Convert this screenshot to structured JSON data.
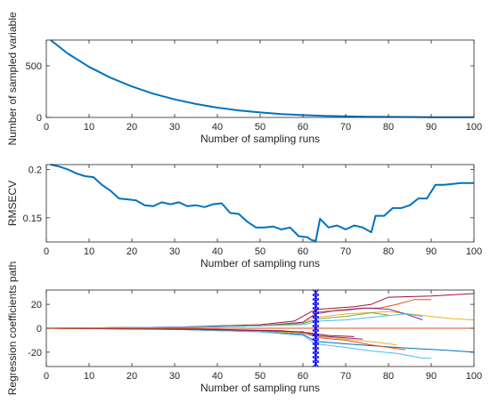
{
  "chart_data": [
    {
      "type": "line",
      "xlabel": "Number of sampling runs",
      "ylabel": "Number of sampled variable",
      "xlim": [
        0,
        100
      ],
      "ylim": [
        0,
        750
      ],
      "xticks": [
        0,
        10,
        20,
        30,
        40,
        50,
        60,
        70,
        80,
        90,
        100
      ],
      "yticks": [
        0,
        500
      ],
      "grid": false,
      "series": [
        {
          "color": "#0072BD",
          "x": [
            1,
            5,
            10,
            15,
            20,
            25,
            30,
            35,
            40,
            45,
            50,
            55,
            60,
            65,
            70,
            75,
            80,
            85,
            90,
            95,
            100
          ],
          "y": [
            750,
            620,
            490,
            385,
            300,
            230,
            175,
            130,
            95,
            68,
            48,
            33,
            22,
            15,
            10,
            7,
            5,
            4,
            3,
            2,
            2
          ]
        }
      ]
    },
    {
      "type": "line",
      "xlabel": "Number of sampling runs",
      "ylabel": "RMSECV",
      "xlim": [
        0,
        100
      ],
      "ylim": [
        0.125,
        0.205
      ],
      "xticks": [
        0,
        10,
        20,
        30,
        40,
        50,
        60,
        70,
        80,
        90,
        100
      ],
      "yticks": [
        0.15,
        0.2
      ],
      "grid": false,
      "series": [
        {
          "color": "#0072BD",
          "x": [
            1,
            3,
            5,
            7,
            9,
            11,
            13,
            15,
            17,
            19,
            21,
            23,
            25,
            27,
            29,
            31,
            33,
            35,
            37,
            39,
            41,
            43,
            45,
            47,
            49,
            51,
            53,
            55,
            57,
            59,
            61,
            62,
            63,
            64,
            66,
            68,
            70,
            72,
            74,
            76,
            77,
            79,
            81,
            83,
            85,
            87,
            89,
            91,
            93,
            95,
            97,
            99,
            100
          ],
          "y": [
            0.205,
            0.203,
            0.2,
            0.196,
            0.193,
            0.192,
            0.184,
            0.178,
            0.17,
            0.169,
            0.168,
            0.163,
            0.162,
            0.166,
            0.164,
            0.166,
            0.162,
            0.163,
            0.161,
            0.164,
            0.165,
            0.155,
            0.154,
            0.146,
            0.14,
            0.14,
            0.141,
            0.138,
            0.14,
            0.131,
            0.13,
            0.127,
            0.126,
            0.149,
            0.14,
            0.142,
            0.138,
            0.142,
            0.14,
            0.135,
            0.152,
            0.152,
            0.16,
            0.16,
            0.163,
            0.17,
            0.17,
            0.184,
            0.184,
            0.185,
            0.186,
            0.186,
            0.186
          ]
        }
      ]
    },
    {
      "type": "line",
      "xlabel": "Number of sampling runs",
      "ylabel": "Regression coefficients path",
      "xlim": [
        0,
        100
      ],
      "ylim": [
        -32,
        32
      ],
      "xticks": [
        0,
        10,
        20,
        30,
        40,
        50,
        60,
        70,
        80,
        90,
        100
      ],
      "yticks": [
        -20,
        0,
        20
      ],
      "grid": false,
      "marker_line": {
        "x": 63,
        "color": "#0000ff"
      },
      "series": [
        {
          "color": "#A2142F",
          "x": [
            0,
            30,
            50,
            58,
            60,
            62,
            64,
            68,
            72,
            76,
            80,
            90,
            95,
            100
          ],
          "y": [
            0,
            1,
            3,
            6,
            10,
            14,
            16,
            17,
            18,
            20,
            26,
            27,
            28,
            29
          ]
        },
        {
          "color": "#D95319",
          "x": [
            0,
            30,
            50,
            60,
            62,
            64,
            70,
            75,
            78,
            82,
            86,
            90
          ],
          "y": [
            0,
            1,
            2,
            5,
            10,
            14,
            15,
            17,
            17,
            20,
            24,
            24
          ]
        },
        {
          "color": "#EDB120",
          "x": [
            0,
            30,
            50,
            60,
            63,
            70,
            80,
            85,
            90,
            95,
            100
          ],
          "y": [
            0,
            1,
            2,
            4,
            9,
            12,
            14,
            12,
            10,
            8,
            7
          ]
        },
        {
          "color": "#7E2F8E",
          "x": [
            0,
            30,
            50,
            60,
            63,
            68,
            74,
            80,
            84,
            88
          ],
          "y": [
            0,
            1,
            2,
            5,
            12,
            15,
            17,
            16,
            12,
            7
          ]
        },
        {
          "color": "#77AC30",
          "x": [
            0,
            35,
            50,
            60,
            64,
            70,
            76,
            80
          ],
          "y": [
            0,
            1,
            2,
            4,
            8,
            10,
            13,
            11
          ]
        },
        {
          "color": "#4DBEEE",
          "x": [
            0,
            35,
            50,
            60,
            64,
            70,
            78,
            84,
            88
          ],
          "y": [
            0,
            1,
            2,
            3,
            6,
            7,
            10,
            12,
            10
          ]
        },
        {
          "color": "#0072BD",
          "x": [
            0,
            30,
            50,
            60,
            63,
            70,
            78,
            86,
            92,
            96,
            100
          ],
          "y": [
            0,
            -1,
            -3,
            -5,
            -11,
            -13,
            -15,
            -17,
            -18,
            -19,
            -20
          ]
        },
        {
          "color": "#4DBEEE",
          "x": [
            0,
            30,
            50,
            60,
            63,
            70,
            76,
            82,
            88,
            90
          ],
          "y": [
            0,
            -1,
            -3,
            -6,
            -13,
            -16,
            -19,
            -21,
            -25,
            -25
          ]
        },
        {
          "color": "#D95319",
          "x": [
            0,
            35,
            50,
            60,
            64,
            70,
            76,
            80,
            84
          ],
          "y": [
            0,
            -1,
            -2,
            -4,
            -8,
            -10,
            -14,
            -16,
            -18
          ]
        },
        {
          "color": "#EDB120",
          "x": [
            0,
            35,
            50,
            60,
            64,
            70,
            78,
            82
          ],
          "y": [
            0,
            -1,
            -2,
            -4,
            -7,
            -9,
            -12,
            -14
          ]
        },
        {
          "color": "#7E2F8E",
          "x": [
            0,
            35,
            50,
            60,
            63,
            70,
            74
          ],
          "y": [
            0,
            -1,
            -2,
            -3,
            -6,
            -8,
            -9
          ]
        },
        {
          "color": "#A2142F",
          "x": [
            0,
            40,
            55,
            62,
            66,
            72
          ],
          "y": [
            0,
            -1,
            -2,
            -4,
            -6,
            -7
          ]
        },
        {
          "color": "#D95319",
          "x": [
            0,
            60,
            100
          ],
          "y": [
            0,
            0,
            0
          ]
        }
      ]
    }
  ]
}
